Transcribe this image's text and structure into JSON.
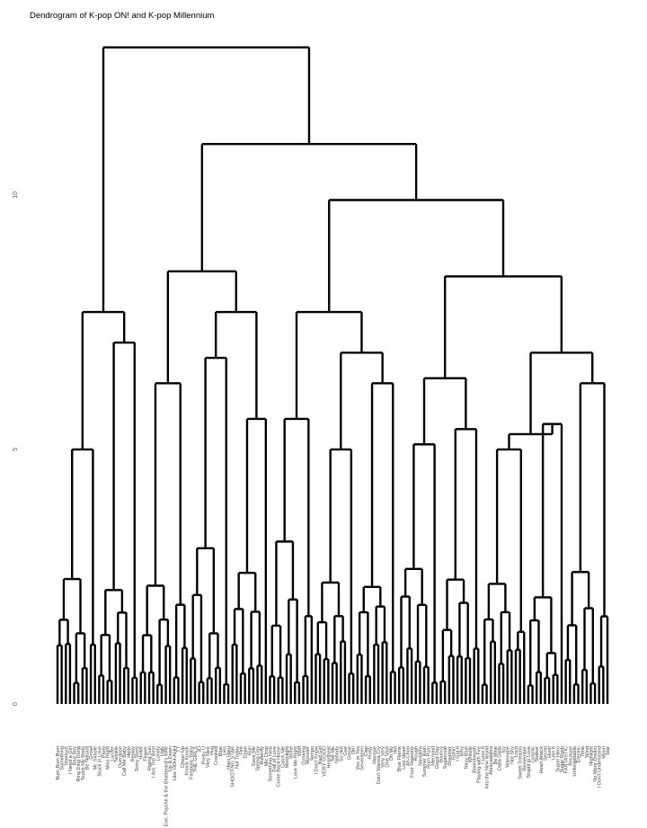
{
  "chart_data": {
    "type": "dendrogram",
    "title": "Dendrogram of K-pop ON! and K-pop Millennium",
    "y_ticks": [
      "0",
      "5",
      "10"
    ],
    "ylim": [
      0,
      13
    ],
    "grid": false,
    "legend": "none",
    "line_color": "#000000",
    "tree": {
      "h": 12.9,
      "c": [
        {
          "h": 7.7,
          "c": [
            {
              "h": 5.9,
              "c": [
                {
                  "h": 5.0,
                  "leaves": [
                    "Bum Bum Bum",
                    "Something",
                    "Sherlock",
                    "I Need a Girl",
                    "Bad Boy",
                    "Ring Ding Dong",
                    "Touch My Body",
                    "Be Natural",
                    "Growl",
                    "Mr. Simple"
                  ]
                }
              ]
            },
            {
              "h": 7.1,
              "leaves": [
                "Stuck in Love",
                "Party",
                "Miss Right",
                "Lucifer",
                "Twinkle",
                "Overdose",
                "Call Me Baby",
                "Hello",
                "Replay",
                "Sorry Sorry"
              ]
            }
          ]
        },
        {
          "h": 11.0,
          "c": [
            {
              "h": 8.5,
              "c": [
                {
                  "h": 6.3,
                  "leaves": [
                    "Holler",
                    "Flower",
                    "Rising Sun",
                    "I Am The Best",
                    "Lonely",
                    "Ugly",
                    "Eve, Psyche & the Bluebeard's Wife",
                    "Up & Down",
                    "Like OOH-AHH",
                    "TT",
                    "Cheer Up",
                    "Knock Knock"
                  ]
                },
                {
                  "h": 7.7,
                  "c": [
                    {
                      "h": 6.8,
                      "leaves": [
                        "Fantastic Baby",
                        "THE GIRLS",
                        "3D",
                        "Pretty U",
                        "Very Nice",
                        "Hug",
                        "Crooked",
                        "Blue",
                        "Lies",
                        "Haru Haru"
                      ]
                    },
                    {
                      "h": 5.6,
                      "leaves": [
                        "SHOOTING STAR",
                        "Not Today",
                        "Fire",
                        "Dope",
                        "Run",
                        "Save Me",
                        "Spring Day",
                        "Butterfly",
                        "Mic Drop"
                      ]
                    }
                  ]
                }
              ]
            },
            {
              "h": 9.9,
              "c": [
                {
                  "h": 7.7,
                  "c": [
                    {
                      "h": 5.6,
                      "leaves": [
                        "Something New",
                        "Fall in Love",
                        "Come Back Home",
                        "Catch Me",
                        "Moonlight",
                        "Shine",
                        "Love Me Right",
                        "Wolf",
                        "Growing",
                        "Monster",
                        "Tempo"
                      ]
                    },
                    {
                      "h": 6.9,
                      "c": [
                        {
                          "h": 5.0,
                          "leaves": [
                            "I Don't Know",
                            "Bad Girl",
                            "VERY GOOD",
                            "Heartbeat",
                            "Tell Me",
                            "Nobody",
                            "So Hot",
                            "Gee",
                            "Genie",
                            "Oh!"
                          ]
                        },
                        {
                          "h": 6.3,
                          "leaves": [
                            "Yes or Yes",
                            "Seventeen",
                            "Clap",
                            "Pretty",
                            "Mansae",
                            "Don't Wanna Cry",
                            "Very Very",
                            "One Shot",
                            "Oh My",
                            "Hot"
                          ]
                        }
                      ]
                    }
                  ]
                },
                {
                  "h": 8.4,
                  "c": [
                    {
                      "h": 6.4,
                      "c": [
                        {
                          "h": 5.1,
                          "leaves": [
                            "Blue Flame",
                            "Lion Heart",
                            "Ah-Choo",
                            "Four Seasons",
                            "Rough",
                            "Navillera",
                            "Summer Rain",
                            "Rum Pum",
                            "Mermaid",
                            "Good Day"
                          ]
                        },
                        {
                          "h": 5.4,
                          "leaves": [
                            "Bouncy",
                            "Sugarcoat",
                            "Dreamer",
                            "Rollin'",
                            "I Got It",
                            "Why",
                            "Navy Blue",
                            "Whistle",
                            "Boombayah",
                            "Playing with Fire"
                          ]
                        }
                      ]
                    },
                    {
                      "h": 6.9,
                      "c": [
                        {
                          "h": 5.3,
                          "c": [
                            {
                              "h": 5.0,
                              "leaves": [
                                "I Love It",
                                "Into the New World",
                                "Abracadabra",
                                "Be Mine",
                                "Dalla Dalla",
                                "Icy",
                                "Wannabe",
                                "Not Shy",
                                "Loco",
                                "Sweet Dreams",
                                "Remember"
                              ]
                            },
                            {
                              "h": 5.5,
                              "leaves": [
                                "Stupid in Love",
                                "Cosmic",
                                "Stalker",
                                "Heart Attack",
                                "Secret",
                                "Hush",
                                "Like It",
                                "Super Hero",
                                "Sugar Rush"
                              ]
                            }
                          ]
                        },
                        {
                          "h": 6.3,
                          "leaves": [
                            "FANTASTIC",
                            "Because",
                            "Unforgettable",
                            "Electric",
                            "Time",
                            "Wind",
                            "Highlight",
                            "No More Dream",
                            "I Don't Understand",
                            "Moon",
                            "Star"
                          ]
                        }
                      ]
                    }
                  ]
                }
              ]
            }
          ]
        }
      ]
    }
  }
}
